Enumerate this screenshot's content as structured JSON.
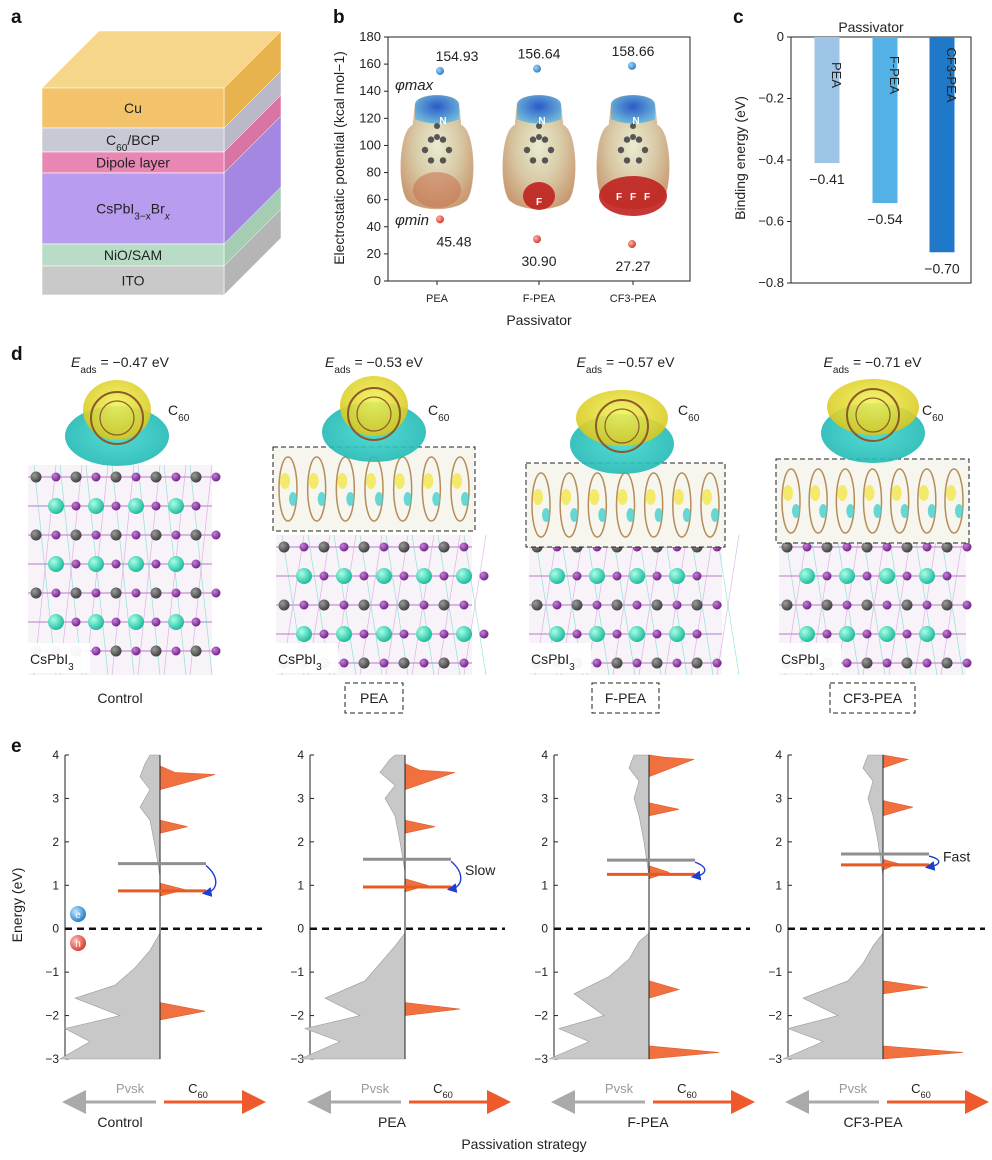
{
  "panel_letters": {
    "a": "a",
    "b": "b",
    "c": "c",
    "d": "d",
    "e": "e"
  },
  "panel_a": {
    "layers": [
      {
        "label": "Cu",
        "color": "#f2c36a",
        "side": "#e8b24e",
        "top": "#f6d68b"
      },
      {
        "label": "C60/BCP",
        "color": "#c9c9d6",
        "side": "#b9b9c8"
      },
      {
        "label": "Dipole layer",
        "color": "#e887b4",
        "side": "#d974a4"
      },
      {
        "label": "CsPbI3−xBrx",
        "color": "#b89cef",
        "side": "#a487e2"
      },
      {
        "label": "NiO/SAM",
        "color": "#b9dcc6",
        "side": "#a6cdb4"
      },
      {
        "label": "ITO",
        "color": "#c9c9c9",
        "side": "#b5b5b5"
      }
    ]
  },
  "panel_b": {
    "chart_data": {
      "type": "scatter",
      "categories": [
        "PEA",
        "F-PEA",
        "CF3-PEA"
      ],
      "series": [
        {
          "name": "φmax",
          "values": [
            154.93,
            156.64,
            158.66
          ],
          "color": "#3b8fd1"
        },
        {
          "name": "φmin",
          "values": [
            45.48,
            30.9,
            27.27
          ],
          "color": "#e2463c"
        }
      ],
      "value_labels": {
        "max": [
          "154.93",
          "156.64",
          "158.66"
        ],
        "min": [
          "45.48",
          "30.90",
          "27.27"
        ]
      },
      "ylabel": "Electrostatic potential (kcal mol−1)",
      "xlabel": "Passivator",
      "ylim": [
        0,
        180
      ],
      "yticks": [
        0,
        20,
        40,
        60,
        80,
        100,
        120,
        140,
        160,
        180
      ],
      "annotations": {
        "max": "φmax",
        "min": "φmin"
      },
      "atom_labels": [
        [
          "N"
        ],
        [
          "N",
          "F"
        ],
        [
          "N",
          "F",
          "F",
          "F"
        ]
      ]
    }
  },
  "panel_c": {
    "chart_data": {
      "type": "bar",
      "categories": [
        "PEA",
        "F-PEA",
        "CF3-PEA"
      ],
      "values": [
        -0.41,
        -0.54,
        -0.7
      ],
      "value_labels": [
        "−0.41",
        "−0.54",
        "−0.70"
      ],
      "colors": [
        "#9cc5e8",
        "#53b1e6",
        "#1f78c8"
      ],
      "title": "Passivator",
      "ylabel": "Binding energy (eV)",
      "ylim": [
        -0.8,
        0
      ],
      "yticks": [
        0,
        -0.2,
        -0.4,
        -0.6,
        -0.8
      ],
      "ytick_labels": [
        "0",
        "−0.2",
        "−0.4",
        "−0.6",
        "−0.8"
      ]
    }
  },
  "panel_d": {
    "items": [
      {
        "eads": "−0.47 eV",
        "caption": "Control",
        "dashed": false
      },
      {
        "eads": "−0.53 eV",
        "caption": "PEA",
        "dashed": true
      },
      {
        "eads": "−0.57 eV",
        "caption": "F-PEA",
        "dashed": true
      },
      {
        "eads": "−0.71 eV",
        "caption": "CF3-PEA",
        "dashed": true
      }
    ],
    "eads_symbol": "E",
    "eads_sub": "ads",
    "molecule": "C60",
    "substrate": "CsPbI3"
  },
  "panel_e": {
    "chart_data": [
      {
        "type": "area",
        "title": "Control",
        "ylim": [
          -3,
          4
        ],
        "gray_level": 1.5,
        "orange_level": 0.87,
        "arrow_label": "",
        "pvsk": [
          [
            -3,
            2.0
          ],
          [
            -2.6,
            1.4
          ],
          [
            -2.3,
            1.9
          ],
          [
            -2.0,
            0.8
          ],
          [
            -1.6,
            1.7
          ],
          [
            -1.3,
            0.9
          ],
          [
            -0.9,
            0.5
          ],
          [
            -0.5,
            0.2
          ],
          [
            -0.1,
            0
          ],
          [
            1.2,
            0
          ],
          [
            1.9,
            0.1
          ],
          [
            2.5,
            0.2
          ],
          [
            2.8,
            0.4
          ],
          [
            3.2,
            0.2
          ],
          [
            3.5,
            0.4
          ],
          [
            3.8,
            0.3
          ],
          [
            4,
            0.2
          ]
        ],
        "c60": [
          [
            -2.1,
            0
          ],
          [
            -1.9,
            0.9
          ],
          [
            -1.7,
            0
          ],
          [
            0.75,
            0
          ],
          [
            0.9,
            0.5
          ],
          [
            1.05,
            0
          ],
          [
            2.2,
            0
          ],
          [
            2.35,
            0.55
          ],
          [
            2.5,
            0
          ],
          [
            3.2,
            0
          ],
          [
            3.55,
            1.1
          ],
          [
            3.6,
            0.3
          ],
          [
            3.75,
            0
          ],
          [
            4,
            0
          ]
        ]
      },
      {
        "type": "area",
        "title": "PEA",
        "ylim": [
          -3,
          4
        ],
        "gray_level": 1.6,
        "orange_level": 0.96,
        "arrow_label": "Slow",
        "pvsk": [
          [
            -3,
            2.1
          ],
          [
            -2.6,
            1.3
          ],
          [
            -2.3,
            2.0
          ],
          [
            -2.0,
            0.9
          ],
          [
            -1.6,
            1.6
          ],
          [
            -1.2,
            0.8
          ],
          [
            -0.8,
            0.5
          ],
          [
            -0.4,
            0.2
          ],
          [
            -0.1,
            0
          ],
          [
            1.3,
            0
          ],
          [
            2.0,
            0.1
          ],
          [
            2.6,
            0.2
          ],
          [
            3.0,
            0.4
          ],
          [
            3.3,
            0.2
          ],
          [
            3.6,
            0.5
          ],
          [
            3.9,
            0.3
          ],
          [
            4,
            0.2
          ]
        ],
        "c60": [
          [
            -2.0,
            0
          ],
          [
            -1.85,
            1.1
          ],
          [
            -1.7,
            0
          ],
          [
            0.85,
            0
          ],
          [
            1.0,
            0.45
          ],
          [
            1.15,
            0
          ],
          [
            2.2,
            0
          ],
          [
            2.35,
            0.6
          ],
          [
            2.5,
            0
          ],
          [
            3.2,
            0
          ],
          [
            3.6,
            1.0
          ],
          [
            3.65,
            0.3
          ],
          [
            3.8,
            0
          ],
          [
            4,
            0
          ]
        ]
      },
      {
        "type": "area",
        "title": "F-PEA",
        "ylim": [
          -3,
          4
        ],
        "gray_level": 1.58,
        "orange_level": 1.25,
        "arrow_label": "",
        "pvsk": [
          [
            -3,
            2.0
          ],
          [
            -2.6,
            1.2
          ],
          [
            -2.3,
            1.8
          ],
          [
            -2.0,
            0.9
          ],
          [
            -1.5,
            1.5
          ],
          [
            -1.1,
            0.8
          ],
          [
            -0.7,
            0.4
          ],
          [
            -0.3,
            0.2
          ],
          [
            -0.1,
            0
          ],
          [
            1.2,
            0
          ],
          [
            2.0,
            0.1
          ],
          [
            2.6,
            0.2
          ],
          [
            3.0,
            0.3
          ],
          [
            3.4,
            0.2
          ],
          [
            3.7,
            0.4
          ],
          [
            4,
            0.3
          ]
        ],
        "c60": [
          [
            -3,
            0
          ],
          [
            -2.85,
            1.4
          ],
          [
            -2.7,
            0
          ],
          [
            -1.6,
            0
          ],
          [
            -1.4,
            0.6
          ],
          [
            -1.2,
            0
          ],
          [
            1.15,
            0
          ],
          [
            1.3,
            0.4
          ],
          [
            1.45,
            0
          ],
          [
            2.6,
            0
          ],
          [
            2.75,
            0.6
          ],
          [
            2.9,
            0
          ],
          [
            3.5,
            0
          ],
          [
            3.9,
            0.9
          ],
          [
            3.95,
            0.3
          ],
          [
            4,
            0
          ]
        ]
      },
      {
        "type": "area",
        "title": "CF3-PEA",
        "ylim": [
          -3,
          4
        ],
        "gray_level": 1.72,
        "orange_level": 1.47,
        "arrow_label": "Fast",
        "pvsk": [
          [
            -3,
            2.0
          ],
          [
            -2.6,
            1.2
          ],
          [
            -2.3,
            1.9
          ],
          [
            -2.0,
            0.9
          ],
          [
            -1.6,
            1.6
          ],
          [
            -1.2,
            0.7
          ],
          [
            -0.8,
            0.4
          ],
          [
            -0.4,
            0.2
          ],
          [
            -0.1,
            0
          ],
          [
            1.2,
            0
          ],
          [
            2.0,
            0.1
          ],
          [
            2.6,
            0.2
          ],
          [
            3.0,
            0.3
          ],
          [
            3.4,
            0.2
          ],
          [
            3.7,
            0.4
          ],
          [
            4,
            0.3
          ]
        ],
        "c60": [
          [
            -3,
            0
          ],
          [
            -2.85,
            1.6
          ],
          [
            -2.7,
            0
          ],
          [
            -1.5,
            0
          ],
          [
            -1.35,
            0.9
          ],
          [
            -1.2,
            0
          ],
          [
            1.35,
            0
          ],
          [
            1.5,
            0.3
          ],
          [
            1.6,
            0
          ],
          [
            2.6,
            0
          ],
          [
            2.8,
            0.6
          ],
          [
            2.95,
            0
          ],
          [
            3.7,
            0
          ],
          [
            3.9,
            0.5
          ],
          [
            4,
            0
          ]
        ]
      }
    ],
    "ylabel": "Energy (eV)",
    "yticks": [
      -3,
      -2,
      -1,
      0,
      1,
      2,
      3,
      4
    ],
    "ytick_labels": [
      "−3",
      "−2",
      "−1",
      "0",
      "1",
      "2",
      "3",
      "4"
    ],
    "pvsk_label": "Pvsk",
    "c60_label": "C60",
    "xlabel": "Passivation strategy",
    "electron": "e",
    "hole": "h"
  }
}
